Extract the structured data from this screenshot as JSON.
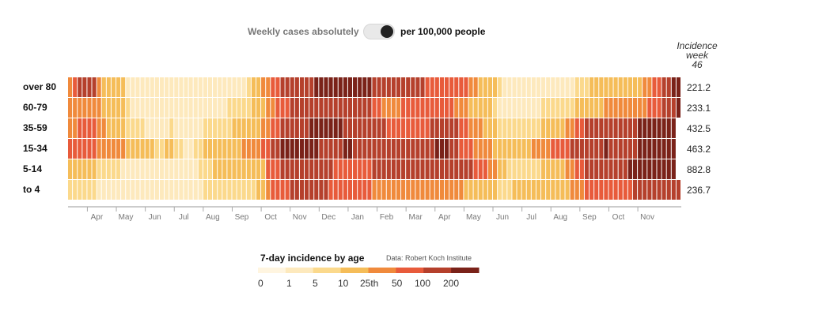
{
  "toggle": {
    "left_label": "Weekly cases absolutely",
    "right_label": "per 100,000 people",
    "state": "per 100,000 people"
  },
  "incidence_header": {
    "line1": "Incidence",
    "line2": "week",
    "line3": "46"
  },
  "legend": {
    "title": "7-day incidence by age",
    "source": "Data: Robert Koch Institute",
    "ticks": [
      "0",
      "1",
      "5",
      "10",
      "25th",
      "50",
      "100",
      "200"
    ],
    "colors": [
      "#fff5e0",
      "#fde9bd",
      "#fbd98c",
      "#f5bd59",
      "#f08a3c",
      "#e85b3b",
      "#b5402c",
      "#7a2219"
    ]
  },
  "chart_data": {
    "type": "heatmap",
    "title": "7-day incidence by age",
    "x_tick_labels": [
      "Apr",
      "May",
      "Jun",
      "Jul",
      "Aug",
      "Sep",
      "Oct",
      "Nov",
      "Dec",
      "Jan",
      "Feb",
      "Mar",
      "Apr",
      "May",
      "Jun",
      "Jul",
      "Aug",
      "Sep",
      "Oct",
      "Nov"
    ],
    "x_tick_week_index": [
      4,
      10,
      16,
      22,
      28,
      34,
      40,
      46,
      52,
      58,
      64,
      70,
      76,
      82,
      88,
      94,
      100,
      106,
      112,
      118
    ],
    "rows": [
      {
        "label": "over 80",
        "current": "221.2",
        "levels": [
          4,
          5,
          6,
          6,
          6,
          6,
          4,
          3,
          3,
          3,
          3,
          3,
          1,
          1,
          1,
          1,
          1,
          1,
          1,
          1,
          1,
          1,
          1,
          1,
          1,
          1,
          1,
          1,
          1,
          1,
          1,
          1,
          1,
          1,
          1,
          1,
          1,
          2,
          3,
          3,
          4,
          4,
          5,
          5,
          6,
          6,
          6,
          6,
          6,
          6,
          6,
          7,
          7,
          7,
          7,
          7,
          7,
          7,
          7,
          7,
          7,
          7,
          7,
          6,
          6,
          6,
          6,
          6,
          6,
          6,
          6,
          6,
          6,
          6,
          5,
          5,
          5,
          5,
          5,
          5,
          5,
          5,
          5,
          4,
          4,
          3,
          3,
          3,
          3,
          2,
          1,
          1,
          1,
          1,
          1,
          1,
          1,
          1,
          1,
          1,
          1,
          1,
          1,
          1,
          1,
          2,
          2,
          2,
          3,
          3,
          3,
          3,
          3,
          3,
          3,
          3,
          3,
          3,
          3,
          4,
          4,
          5,
          5,
          6,
          6,
          7,
          7
        ]
      },
      {
        "label": "60-79",
        "current": "233.1",
        "levels": [
          4,
          4,
          4,
          4,
          4,
          4,
          4,
          3,
          3,
          3,
          3,
          3,
          2,
          1,
          1,
          1,
          1,
          1,
          1,
          1,
          1,
          1,
          1,
          1,
          1,
          1,
          1,
          1,
          1,
          1,
          1,
          1,
          1,
          2,
          2,
          2,
          2,
          2,
          3,
          3,
          3,
          4,
          4,
          5,
          5,
          5,
          6,
          6,
          6,
          6,
          6,
          6,
          6,
          6,
          6,
          6,
          6,
          6,
          6,
          6,
          6,
          6,
          6,
          5,
          5,
          4,
          4,
          4,
          4,
          5,
          5,
          5,
          5,
          5,
          5,
          5,
          5,
          5,
          5,
          5,
          4,
          4,
          4,
          3,
          3,
          3,
          3,
          3,
          2,
          1,
          1,
          1,
          1,
          1,
          1,
          1,
          1,
          1,
          2,
          2,
          2,
          2,
          2,
          2,
          2,
          3,
          3,
          3,
          3,
          3,
          3,
          4,
          4,
          4,
          4,
          4,
          4,
          4,
          4,
          4,
          5,
          5,
          5,
          6,
          6,
          6,
          7
        ]
      },
      {
        "label": "35-59",
        "current": "432.5",
        "levels": [
          4,
          4,
          5,
          5,
          5,
          5,
          4,
          4,
          3,
          3,
          3,
          3,
          2,
          2,
          2,
          2,
          1,
          1,
          1,
          1,
          1,
          2,
          1,
          1,
          1,
          1,
          1,
          1,
          2,
          2,
          2,
          2,
          2,
          2,
          3,
          3,
          3,
          3,
          3,
          3,
          4,
          4,
          5,
          5,
          6,
          6,
          6,
          6,
          6,
          6,
          7,
          7,
          7,
          7,
          7,
          7,
          7,
          6,
          6,
          6,
          6,
          6,
          6,
          6,
          6,
          6,
          5,
          5,
          5,
          5,
          5,
          5,
          5,
          5,
          5,
          6,
          6,
          6,
          6,
          6,
          6,
          5,
          5,
          4,
          4,
          4,
          3,
          3,
          3,
          2,
          2,
          2,
          2,
          2,
          2,
          2,
          2,
          2,
          3,
          3,
          3,
          3,
          3,
          4,
          4,
          5,
          5,
          6,
          6,
          6,
          6,
          6,
          6,
          6,
          6,
          6,
          6,
          6,
          7,
          7,
          7,
          7,
          7,
          7,
          7,
          7
        ]
      },
      {
        "label": "15-34",
        "current": "463.2",
        "levels": [
          5,
          5,
          5,
          5,
          5,
          5,
          4,
          4,
          4,
          4,
          4,
          4,
          3,
          3,
          3,
          3,
          3,
          3,
          2,
          2,
          3,
          3,
          2,
          2,
          1,
          1,
          2,
          2,
          3,
          3,
          3,
          3,
          3,
          3,
          3,
          3,
          4,
          4,
          4,
          4,
          5,
          5,
          6,
          6,
          7,
          7,
          7,
          7,
          7,
          7,
          7,
          7,
          6,
          6,
          6,
          6,
          6,
          7,
          7,
          6,
          6,
          6,
          6,
          6,
          6,
          6,
          6,
          6,
          6,
          6,
          6,
          6,
          6,
          6,
          6,
          6,
          7,
          7,
          7,
          6,
          6,
          5,
          5,
          5,
          4,
          4,
          4,
          4,
          3,
          3,
          3,
          3,
          3,
          3,
          3,
          3,
          4,
          4,
          4,
          4,
          5,
          5,
          5,
          5,
          6,
          6,
          6,
          6,
          6,
          6,
          6,
          7,
          6,
          6,
          6,
          6,
          6,
          6,
          7,
          7,
          7,
          7,
          7,
          7,
          7,
          7
        ]
      },
      {
        "label": "5-14",
        "current": "882.8",
        "levels": [
          3,
          3,
          3,
          3,
          3,
          3,
          2,
          2,
          2,
          2,
          2,
          1,
          1,
          1,
          1,
          1,
          1,
          1,
          1,
          1,
          1,
          1,
          1,
          1,
          1,
          1,
          1,
          2,
          2,
          2,
          3,
          3,
          3,
          3,
          3,
          3,
          3,
          3,
          3,
          3,
          3,
          5,
          5,
          5,
          6,
          6,
          6,
          6,
          6,
          6,
          6,
          6,
          6,
          6,
          6,
          5,
          5,
          5,
          5,
          5,
          5,
          5,
          5,
          6,
          6,
          6,
          6,
          6,
          6,
          6,
          6,
          6,
          6,
          6,
          6,
          6,
          6,
          6,
          6,
          6,
          6,
          6,
          6,
          6,
          5,
          5,
          5,
          4,
          4,
          3,
          3,
          2,
          2,
          2,
          2,
          2,
          2,
          2,
          3,
          3,
          3,
          3,
          3,
          4,
          4,
          5,
          5,
          6,
          6,
          6,
          6,
          6,
          6,
          6,
          6,
          6,
          7,
          7,
          7,
          7,
          7,
          7,
          7,
          7,
          7,
          7
        ]
      },
      {
        "label": "to 4",
        "current": "236.7",
        "levels": [
          2,
          2,
          2,
          2,
          2,
          2,
          1,
          1,
          1,
          1,
          1,
          1,
          1,
          1,
          1,
          1,
          1,
          1,
          1,
          1,
          1,
          1,
          1,
          1,
          1,
          1,
          1,
          1,
          2,
          2,
          2,
          2,
          2,
          2,
          2,
          2,
          2,
          2,
          2,
          3,
          3,
          4,
          5,
          5,
          5,
          5,
          6,
          6,
          6,
          6,
          6,
          6,
          6,
          6,
          5,
          5,
          5,
          5,
          5,
          5,
          5,
          5,
          5,
          4,
          4,
          4,
          4,
          4,
          4,
          4,
          4,
          4,
          4,
          4,
          4,
          4,
          4,
          4,
          4,
          4,
          4,
          4,
          3,
          3,
          3,
          3,
          3,
          3,
          3,
          2,
          2,
          2,
          3,
          3,
          3,
          3,
          3,
          3,
          3,
          3,
          3,
          3,
          3,
          3,
          4,
          4,
          4,
          5,
          5,
          5,
          5,
          5,
          5,
          5,
          5,
          5,
          5,
          6,
          6,
          6,
          6,
          6,
          6,
          6,
          6,
          6,
          6
        ]
      }
    ]
  }
}
